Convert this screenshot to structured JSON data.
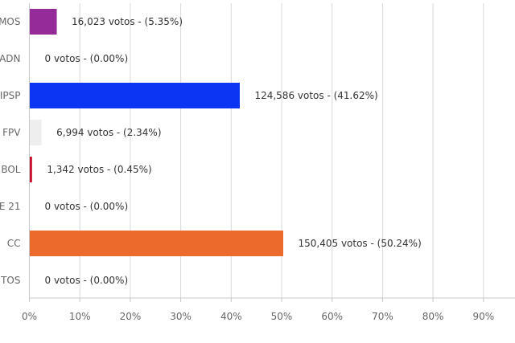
{
  "chart_data": {
    "type": "bar",
    "orientation": "horizontal",
    "categories": [
      "MOS",
      "ADN",
      "IPSP",
      "FPV",
      "BOL",
      "E 21",
      "CC",
      "TOS"
    ],
    "values": [
      5.35,
      0.0,
      41.62,
      2.34,
      0.45,
      0.0,
      50.24,
      0.0
    ],
    "votes": [
      "16,023",
      "0",
      "124,586",
      "6,994",
      "1,342",
      "0",
      "150,405",
      "0"
    ],
    "data_labels": [
      "16,023 votos - (5.35%)",
      "0 votos - (0.00%)",
      "124,586 votos - (41.62%)",
      "6,994 votos - (2.34%)",
      "1,342 votos - (0.45%)",
      "0 votos - (0.00%)",
      "150,405 votos - (50.24%)",
      "0 votos - (0.00%)"
    ],
    "colors": [
      "#952b99",
      "#cccccc",
      "#0b35f2",
      "#eeeeee",
      "#c8102e",
      "#cccccc",
      "#ec6a2c",
      "#cccccc"
    ],
    "x_ticks": [
      "0%",
      "10%",
      "20%",
      "30%",
      "40%",
      "50%",
      "60%",
      "70%",
      "80%",
      "90%"
    ],
    "xlim": [
      0,
      96
    ],
    "grid": true,
    "legend": "none",
    "title": "",
    "xlabel": "",
    "ylabel": ""
  }
}
